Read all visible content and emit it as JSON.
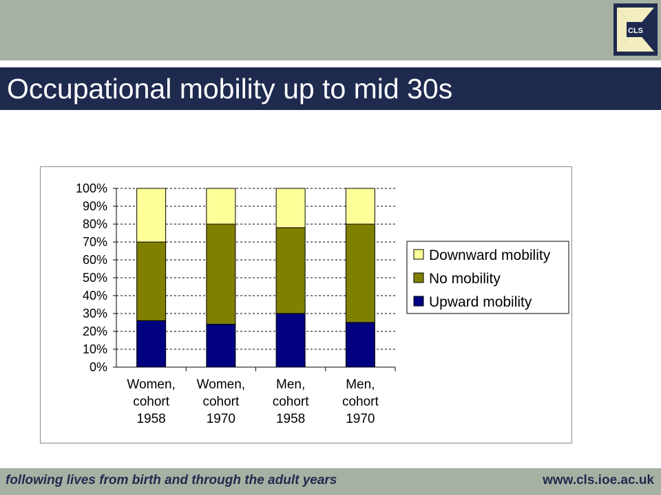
{
  "slide": {
    "title": "Occupational mobility up to mid 30s",
    "logo_text": "CLS"
  },
  "footer": {
    "tagline": "following lives from birth and through the adult years",
    "url": "www.cls.ioe.ac.uk"
  },
  "colors": {
    "header_band": "#a7b1a3",
    "title_bar": "#1f2a4f",
    "upward": "#000080",
    "no_mobility": "#808000",
    "downward": "#ffff99"
  },
  "chart_data": {
    "type": "bar",
    "stacked": true,
    "categories": [
      [
        "Women,",
        "cohort",
        "1958"
      ],
      [
        "Women,",
        "cohort",
        "1970"
      ],
      [
        "Men,",
        "cohort",
        "1958"
      ],
      [
        "Men,",
        "cohort",
        "1970"
      ]
    ],
    "series": [
      {
        "name": "Upward mobility",
        "color": "#000080",
        "values": [
          26,
          24,
          30,
          25
        ]
      },
      {
        "name": "No mobility",
        "color": "#808000",
        "values": [
          44,
          56,
          48,
          55
        ]
      },
      {
        "name": "Downward mobility",
        "color": "#ffff99",
        "values": [
          30,
          20,
          22,
          20
        ]
      }
    ],
    "legend": [
      {
        "label": "Downward mobility",
        "color": "#ffff99"
      },
      {
        "label": "No mobility",
        "color": "#808000"
      },
      {
        "label": "Upward mobility",
        "color": "#000080"
      }
    ],
    "legend_position": "right",
    "yticks": [
      "0%",
      "10%",
      "20%",
      "30%",
      "40%",
      "50%",
      "60%",
      "70%",
      "80%",
      "90%",
      "100%"
    ],
    "ylim": [
      0,
      100
    ],
    "grid": "horizontal dashed"
  }
}
